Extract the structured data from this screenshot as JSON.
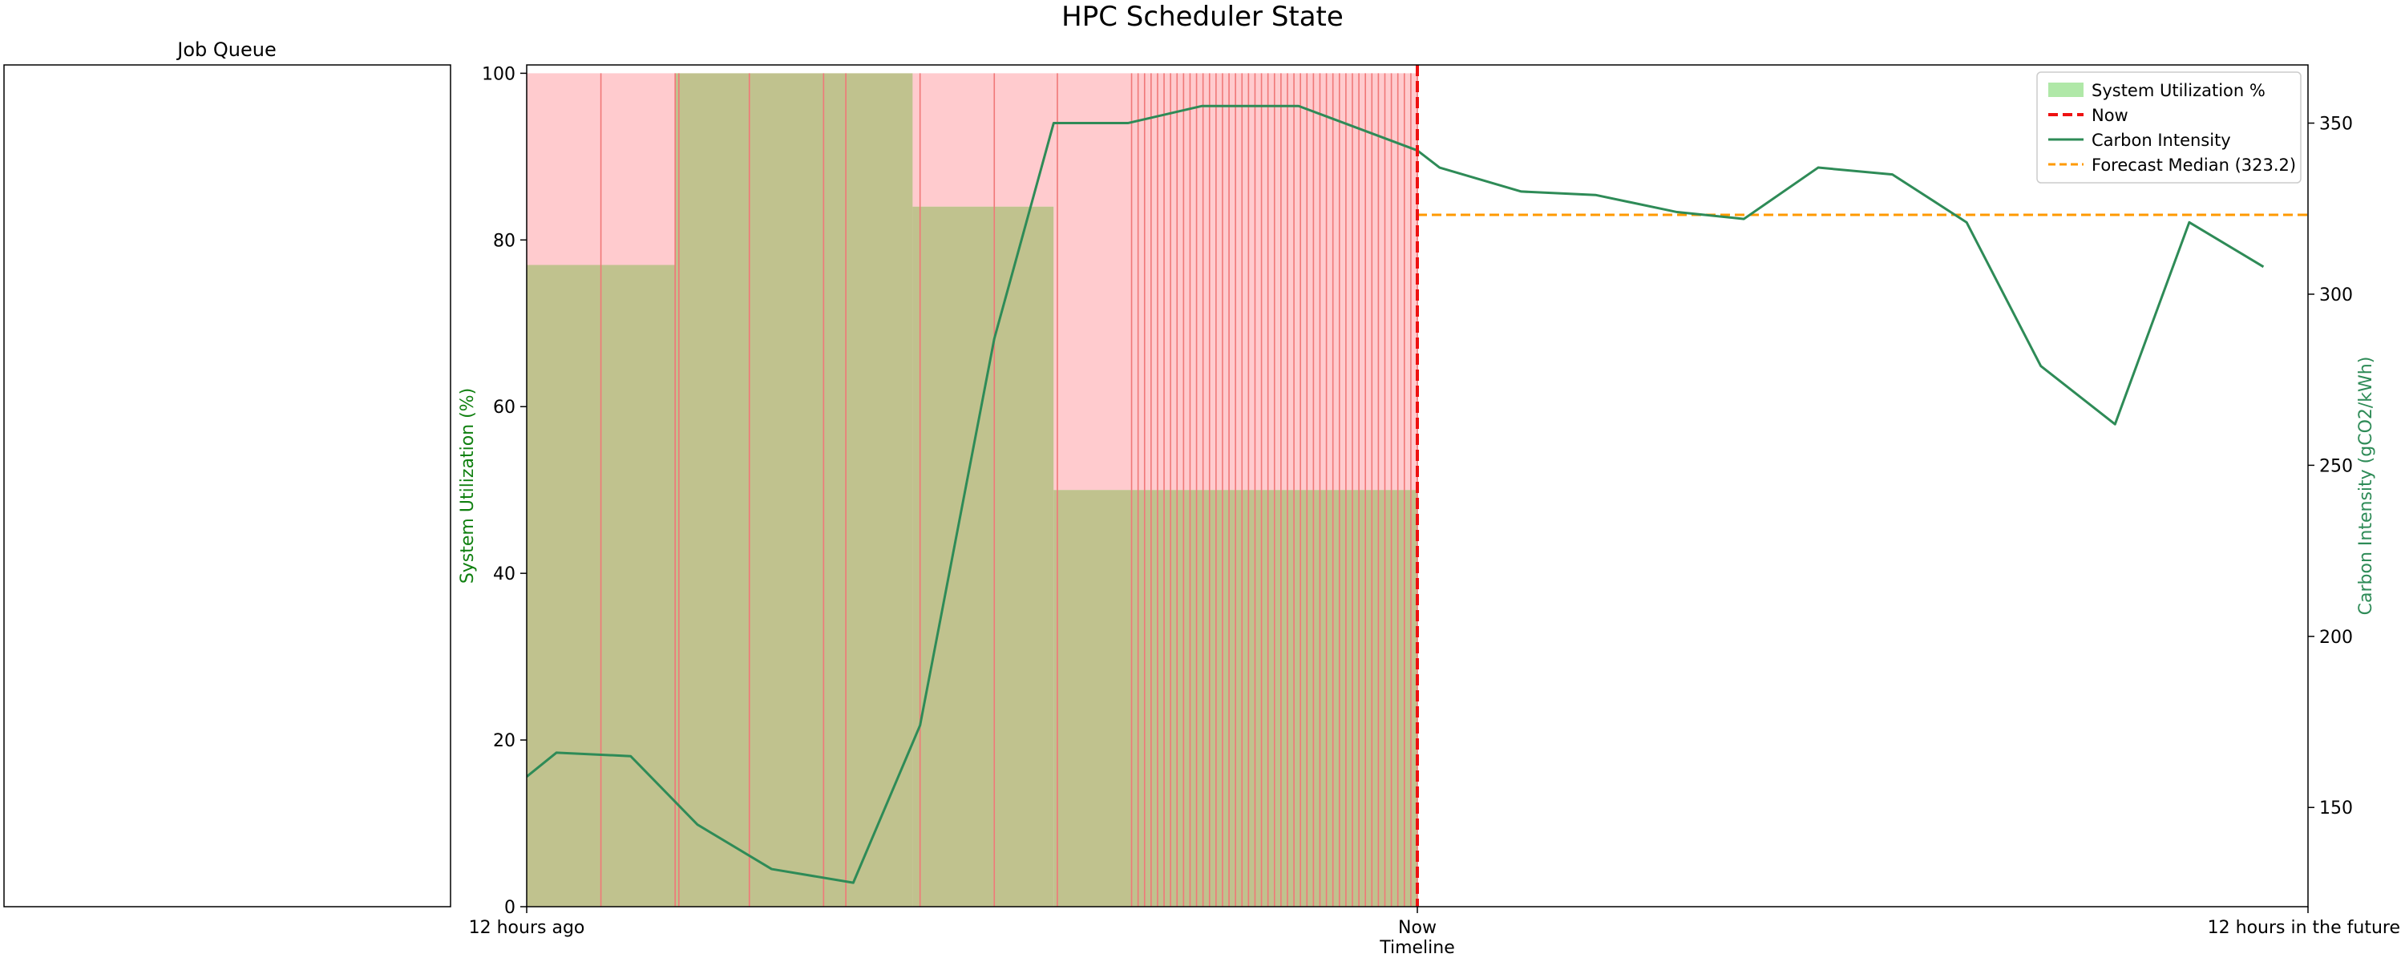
{
  "figure": {
    "title": "HPC Scheduler State",
    "queue_panel_title": "Job Queue"
  },
  "colors": {
    "utilization_fill": "#b0e8a8",
    "utilization_overlap": "#c0c28e",
    "reserved_fill": "#ffcbce",
    "job_line": "#f07878",
    "now_line": "#ee1111",
    "carbon_line": "#2e8b57",
    "forecast_line": "#ff9a00",
    "left_axis_label": "#108010",
    "right_axis_label": "#2e8b57"
  },
  "chart_data": {
    "type": "area",
    "title": "HPC Scheduler State",
    "xlabel": "Timeline",
    "x_ticks": [
      {
        "x": -12,
        "label": "12 hours ago"
      },
      {
        "x": 0,
        "label": "Now"
      },
      {
        "x": 12,
        "label": "12 hours in the future"
      }
    ],
    "xlim": [
      -12,
      12
    ],
    "ylabel_left": "System Utilization (%)",
    "ylim_left": [
      0,
      101
    ],
    "yticks_left": [
      0,
      20,
      40,
      60,
      80,
      100
    ],
    "ylabel_right": "Carbon Intensity (gCO2/kWh)",
    "ylim_right": [
      121,
      367
    ],
    "yticks_right": [
      150,
      200,
      250,
      300,
      350
    ],
    "grid": false,
    "legend_position": "top-right",
    "legend": [
      {
        "label": "System Utilization %",
        "kind": "patch"
      },
      {
        "label": "Now",
        "kind": "dashed-red"
      },
      {
        "label": "Carbon Intensity",
        "kind": "line"
      },
      {
        "label": "Forecast Median (323.2)",
        "kind": "dashed-orange"
      }
    ],
    "utilization_segments": [
      {
        "x0": -12.0,
        "x1": -10.0,
        "util": 77
      },
      {
        "x0": -10.0,
        "x1": -6.8,
        "util": 100
      },
      {
        "x0": -6.8,
        "x1": -4.9,
        "util": 84
      },
      {
        "x0": -4.9,
        "x1": 0.0,
        "util": 50
      }
    ],
    "reserved_level": 100,
    "job_lines_x": [
      -11.0,
      -10.0,
      -9.95,
      -9.0,
      -8.0,
      -7.7,
      -6.7,
      -5.7,
      -4.85
    ],
    "job_lines_dense": {
      "x0": -3.85,
      "x1": 0.0,
      "count": 45
    },
    "now_x": 0,
    "carbon_intensity": {
      "name": "Carbon Intensity",
      "x": [
        -12.0,
        -11.6,
        -10.6,
        -9.7,
        -8.7,
        -7.6,
        -6.7,
        -5.7,
        -4.9,
        -3.9,
        -2.9,
        -1.6,
        0.0,
        0.3,
        1.4,
        2.4,
        3.5,
        4.4,
        5.4,
        6.4,
        7.4,
        8.4,
        9.4,
        10.4,
        11.4
      ],
      "y": [
        159,
        166,
        165,
        145,
        132,
        128,
        174,
        287,
        350,
        350,
        355,
        355,
        342,
        337,
        330,
        329,
        324,
        322,
        337,
        335,
        321,
        279,
        262,
        321,
        308
      ]
    },
    "forecast_median": {
      "name": "Forecast Median (323.2)",
      "value": 323.2,
      "x0": 0,
      "x1": 12
    }
  }
}
